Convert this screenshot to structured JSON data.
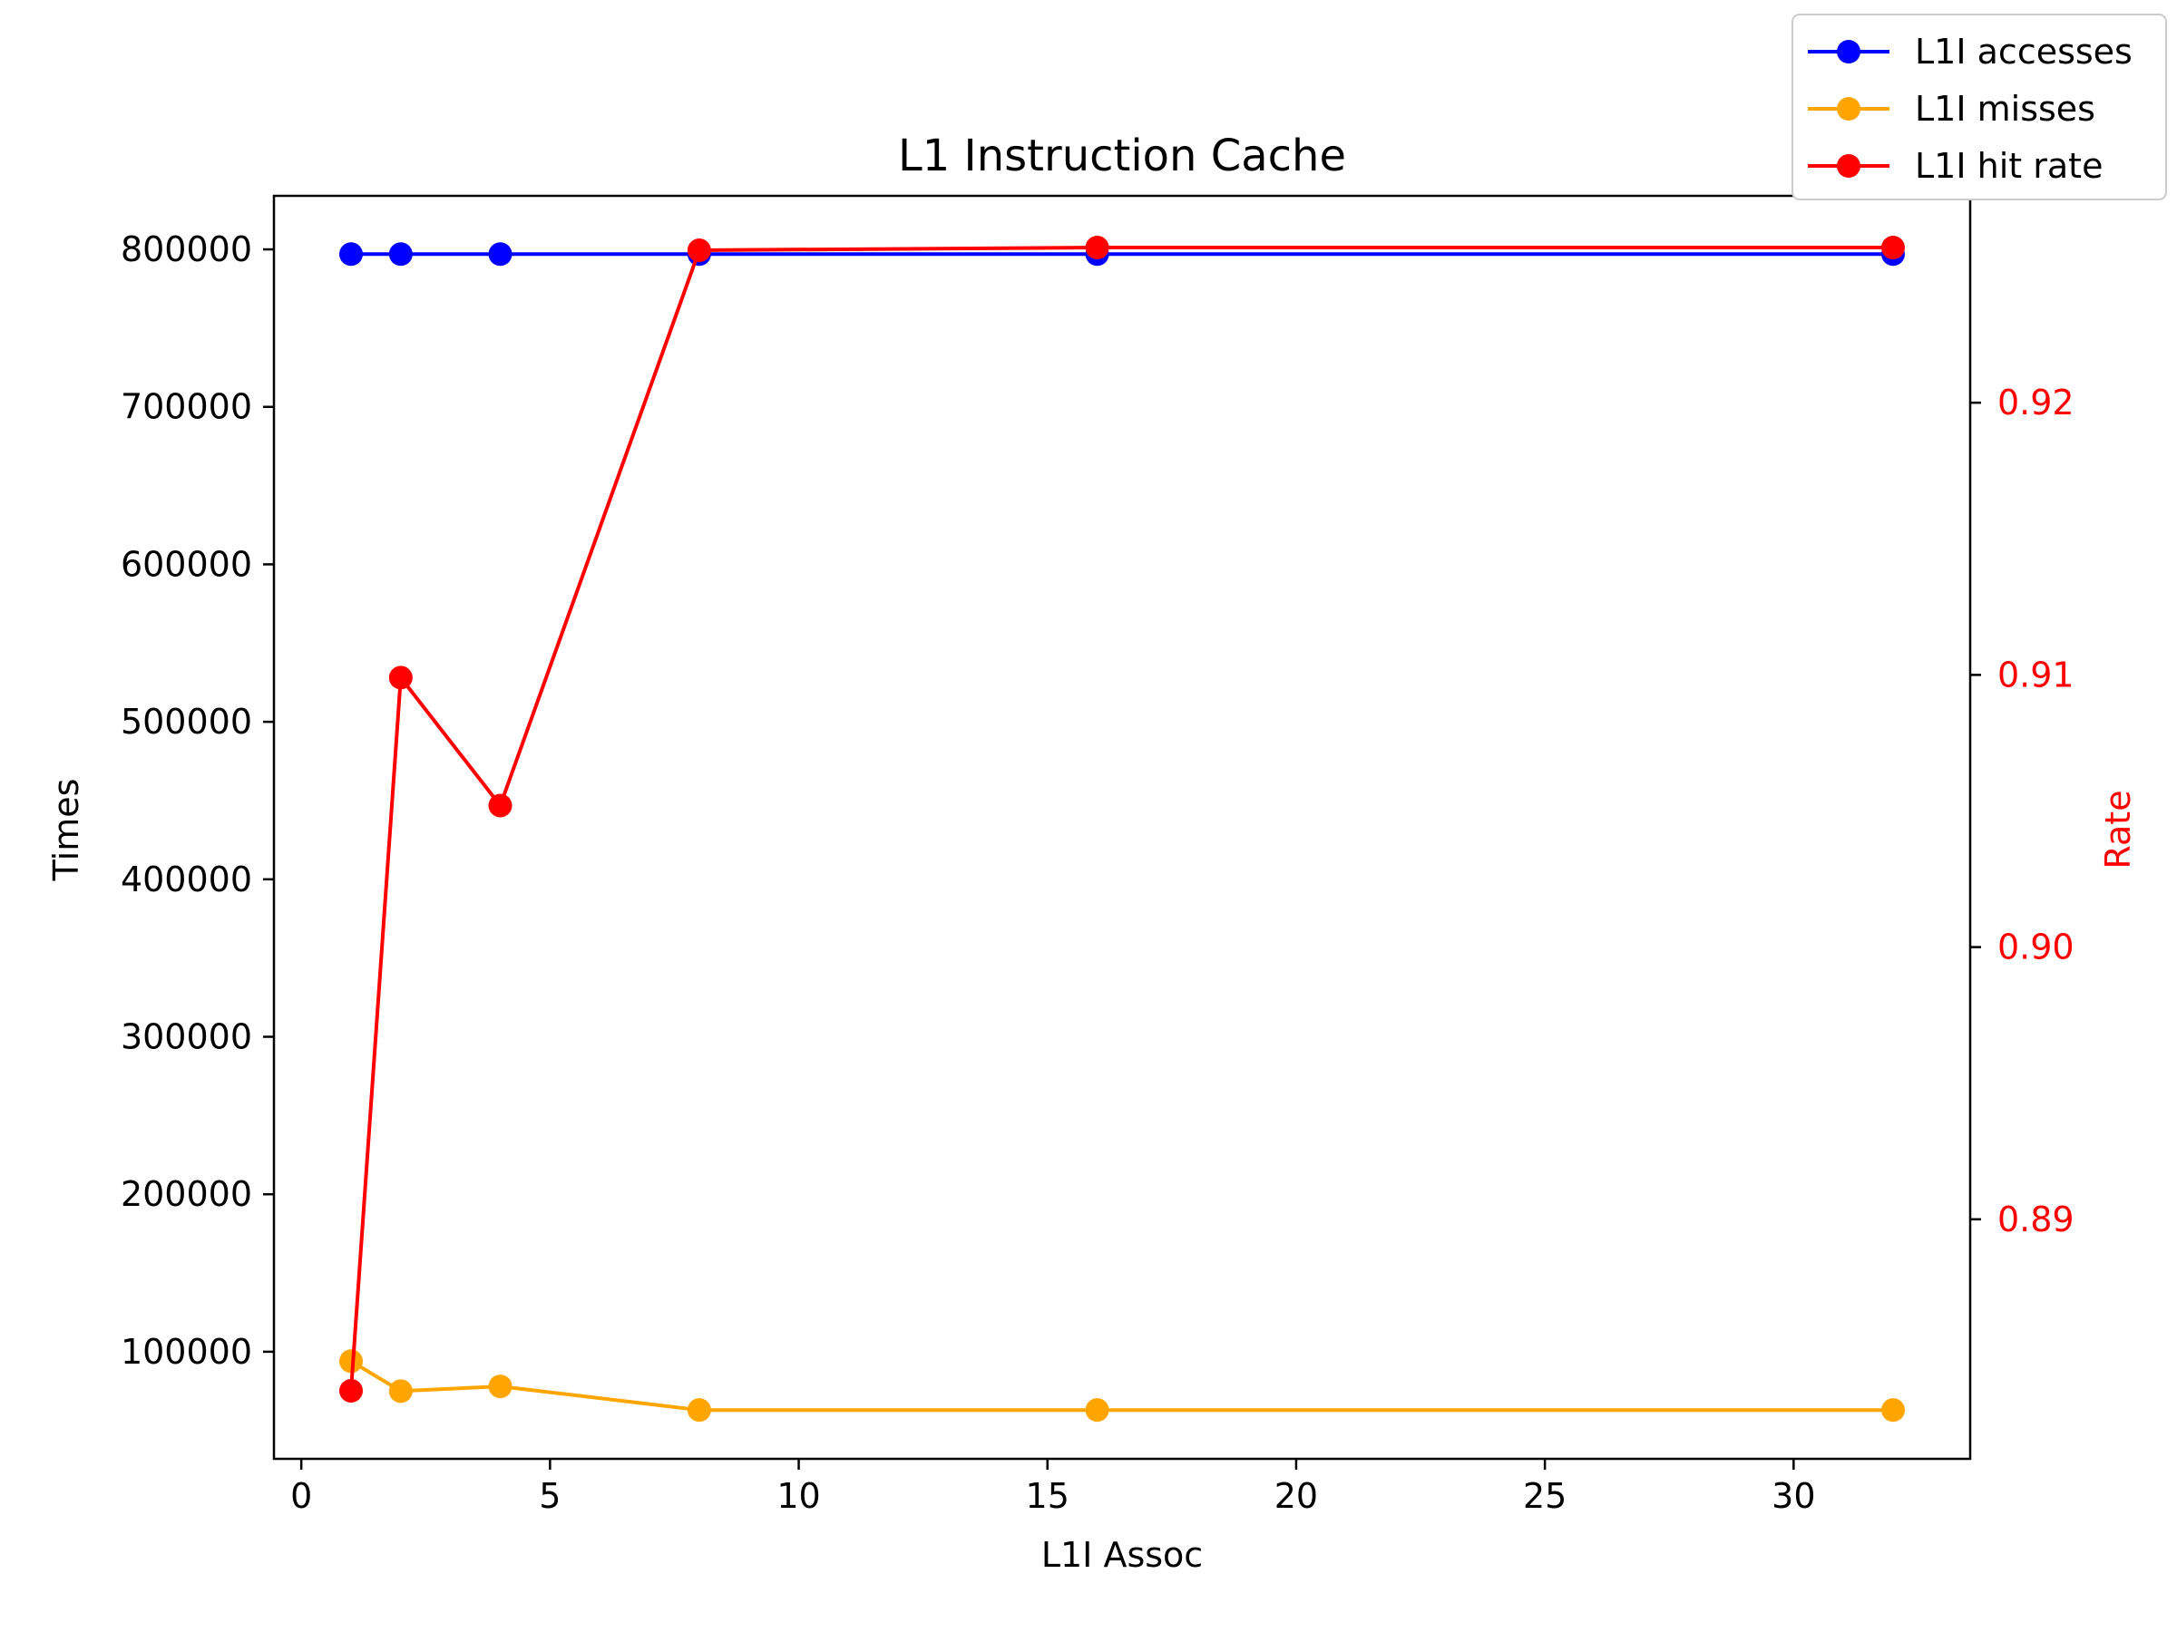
{
  "chart_data": {
    "type": "line",
    "title": "L1 Instruction Cache",
    "xlabel": "L1I Assoc",
    "ylabel_left": "Times",
    "ylabel_right": "Rate",
    "x": [
      1,
      2,
      4,
      8,
      16,
      32
    ],
    "xlim": [
      -0.55,
      33.55
    ],
    "xticks": [
      0,
      5,
      10,
      15,
      20,
      25,
      30
    ],
    "ylim_left": [
      32000,
      834000
    ],
    "yticks_left": [
      100000,
      200000,
      300000,
      400000,
      500000,
      600000,
      700000,
      800000
    ],
    "ylim_right": [
      0.8812,
      0.9276
    ],
    "yticks_right": [
      0.89,
      0.9,
      0.91,
      0.92
    ],
    "grid": false,
    "legend_position": "top-right",
    "series": [
      {
        "name": "L1I accesses",
        "axis": "left",
        "color": "#0000ff",
        "values": [
          797000,
          797000,
          797000,
          797000,
          797000,
          797000
        ]
      },
      {
        "name": "L1I misses",
        "axis": "left",
        "color": "#ffa500",
        "values": [
          94000,
          75000,
          78000,
          63000,
          63000,
          63000
        ]
      },
      {
        "name": "L1I hit rate",
        "axis": "right",
        "color": "#ff0000",
        "values": [
          0.8837,
          0.9099,
          0.9052,
          0.9256,
          0.9257,
          0.9257
        ]
      }
    ]
  }
}
